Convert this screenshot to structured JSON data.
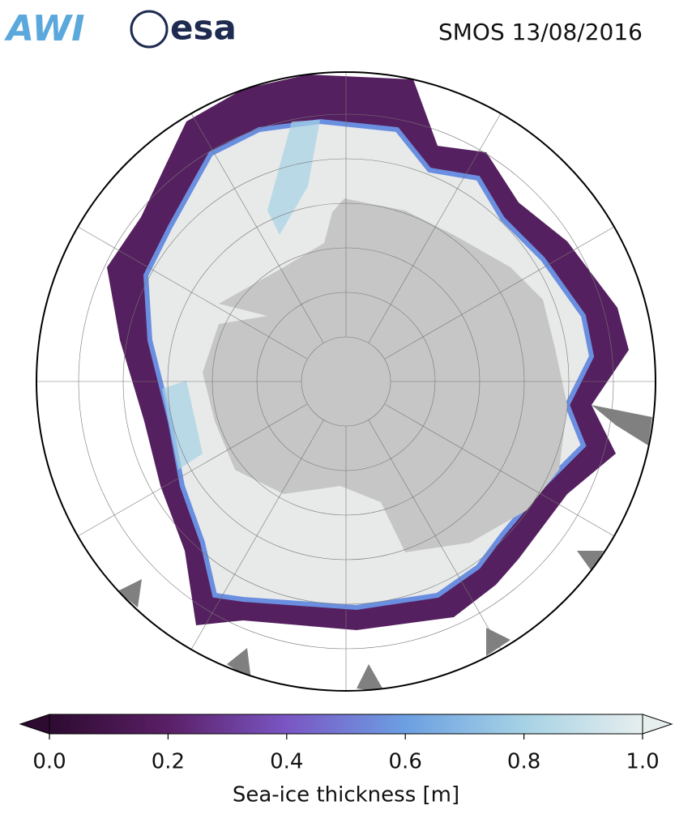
{
  "header": {
    "logos": [
      "AWI",
      "esa"
    ],
    "title": "SMOS 13/08/2016"
  },
  "colorbar": {
    "label": "Sea-ice thickness [m]",
    "lim": [
      0,
      1
    ],
    "ticks": [
      {
        "value": 0,
        "label": "0.0"
      },
      {
        "value": 0.2,
        "label": "0.2"
      },
      {
        "value": 0.4,
        "label": "0.4"
      },
      {
        "value": 0.6,
        "label": "0.6"
      },
      {
        "value": 0.8,
        "label": "0.8"
      },
      {
        "value": 1,
        "label": "1.0"
      }
    ],
    "colors": [
      "#2d0b30",
      "#5a1f66",
      "#7a56c4",
      "#6c9fe2",
      "#a6d2e4",
      "#e6eeee"
    ]
  }
}
